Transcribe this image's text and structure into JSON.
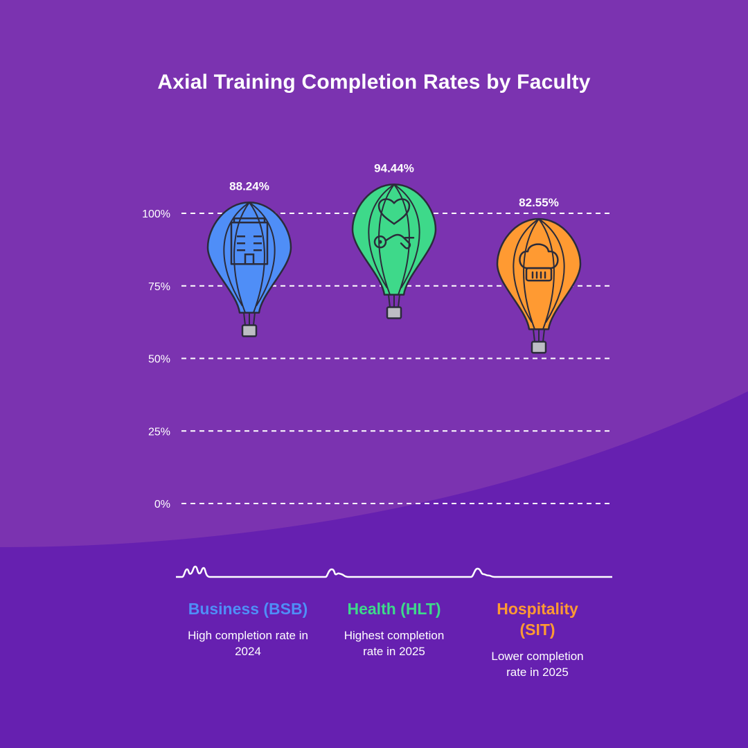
{
  "colors": {
    "background": "#7b33b0",
    "background_band": "#6620b0",
    "grid": "#ffffff",
    "text": "#ffffff",
    "outline": "#2b2b3a",
    "basket": "#bdbdc4"
  },
  "chart_data": {
    "type": "scatter",
    "title": "Axial Training Completion Rates by Faculty",
    "xlabel": "",
    "ylabel": "",
    "ylim": [
      0,
      100
    ],
    "yticks": [
      "0%",
      "25%",
      "50%",
      "75%",
      "100%"
    ],
    "grid": true,
    "categories": [
      "Business (BSB)",
      "Health (HLT)",
      "Hospitality (SIT)"
    ],
    "values": [
      88.24,
      94.44,
      82.55
    ],
    "value_labels": [
      "88.24%",
      "94.44%",
      "82.55%"
    ],
    "descriptions": [
      "High completion rate in 2024",
      "Highest completion rate in 2025",
      "Lower completion rate in 2025"
    ],
    "icons": [
      "building-icon",
      "stethoscope-heart-icon",
      "chef-hat-icon"
    ],
    "series_colors": [
      "#4f8ef7",
      "#3ed98a",
      "#ff9a32"
    ],
    "label_colors": [
      "#4f8ef7",
      "#3ed98a",
      "#ff9a32"
    ]
  }
}
